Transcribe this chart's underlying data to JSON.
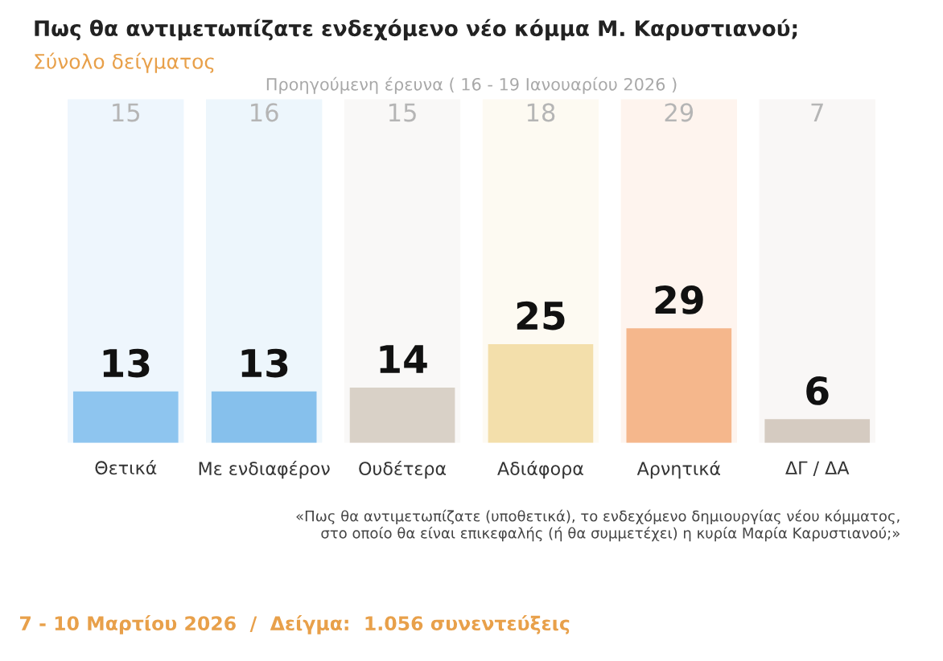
{
  "chart_data": {
    "type": "bar",
    "title": "Πως θα αντιμετωπίζατε ενδεχόμενο νέο κόμμα Μ. Καρυστιανού;",
    "subtitle": "Σύνολο δείγματος",
    "categories": [
      "Θετικά",
      "Με ενδιαφέρον",
      "Ουδέτερα",
      "Αδιάφορα",
      "Αρνητικά",
      "ΔΓ / ΔΑ"
    ],
    "values": [
      13,
      13,
      14,
      25,
      29,
      6
    ],
    "colors": [
      "#8ec5ef",
      "#86c0ec",
      "#d9d1c7",
      "#f3dfab",
      "#f5b78c",
      "#d5cbc1"
    ],
    "data_labels": true,
    "annotations": [
      "Προηγούμενη έρευνα ( 16 - 19 Ιανουαρίου 2026 )",
      "15",
      "16",
      "15",
      "18",
      "29",
      "7",
      "«Πως θα αντιμετωπίζατε (υποθετικά), το ενδεχόμενο δημιουργίας νέου κόμματος,\nστο οποίο θα είναι επικεφαλής (ή θα συμμετέχει) η κυρία Μαρία Καρυστιανού;»",
      "7 - 10 Μαρτίου 2026  /  Δείγμα:  1.056 συνεντεύξεις"
    ],
    "legend": false,
    "grid": false
  }
}
